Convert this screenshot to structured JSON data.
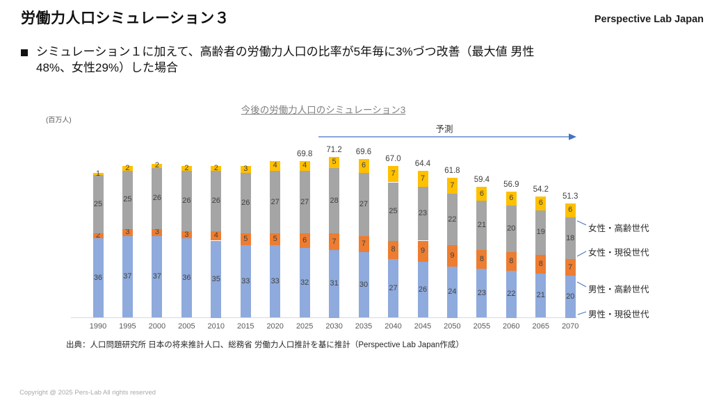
{
  "page": {
    "title": "労働力人口シミュレーション３",
    "brand": "Perspective Lab Japan",
    "bullet": "シミュレーション１に加えて、高齢者の労働力人口の比率が5年毎に3%づつ改善（最大値 男性48%、女性29%）した場合",
    "source": "出典：人口問題研究所 日本の将来推計人口、総務省 労働力人口推計を基に推計（Perspective Lab Japan作成）",
    "copyright": "Copyright @ 2025 Pers-Lab All rights reserved"
  },
  "chart_data": {
    "type": "bar",
    "stacked": true,
    "title": "今後の労働力人口のシミュレーション3",
    "unit_label": "(百万人)",
    "forecast_label": "予測",
    "categories": [
      "1990",
      "1995",
      "2000",
      "2005",
      "2010",
      "2015",
      "2020",
      "2025",
      "2030",
      "2035",
      "2040",
      "2045",
      "2050",
      "2055",
      "2060",
      "2065",
      "2070"
    ],
    "series": [
      {
        "name": "男性・現役世代",
        "color": "#8FAADC",
        "values": [
          36,
          37,
          37,
          36,
          35,
          33,
          33,
          32,
          31,
          30,
          27,
          26,
          24,
          23,
          22,
          21,
          20
        ]
      },
      {
        "name": "男性・高齢世代",
        "color": "#ED7D31",
        "values": [
          2,
          3,
          3,
          3,
          4,
          5,
          5,
          6,
          7,
          7,
          8,
          9,
          9,
          8,
          8,
          8,
          7
        ]
      },
      {
        "name": "女性・現役世代",
        "color": "#A5A5A5",
        "values": [
          25,
          25,
          26,
          26,
          26,
          26,
          27,
          27,
          28,
          27,
          25,
          23,
          22,
          21,
          20,
          19,
          18
        ]
      },
      {
        "name": "女性・高齢世代",
        "color": "#FFC000",
        "values": [
          1,
          2,
          2,
          2,
          2,
          3,
          4,
          4,
          5,
          6,
          7,
          7,
          7,
          6,
          6,
          6,
          6
        ]
      }
    ],
    "total_labels": [
      "",
      "",
      "",
      "",
      "",
      "",
      "",
      "69.8",
      "71.2",
      "69.6",
      "67.0",
      "64.4",
      "61.8",
      "59.4",
      "56.9",
      "54.2",
      "51.3"
    ],
    "y_ticks": [
      82,
      72,
      62,
      52,
      42,
      32,
      22,
      12,
      2
    ],
    "ylim": [
      2,
      82
    ],
    "grid": false,
    "legend_position": "right-callouts",
    "accent_colors": {
      "forecast_arrow": "#4472C4",
      "axis_line": "#D9D9D9"
    }
  }
}
